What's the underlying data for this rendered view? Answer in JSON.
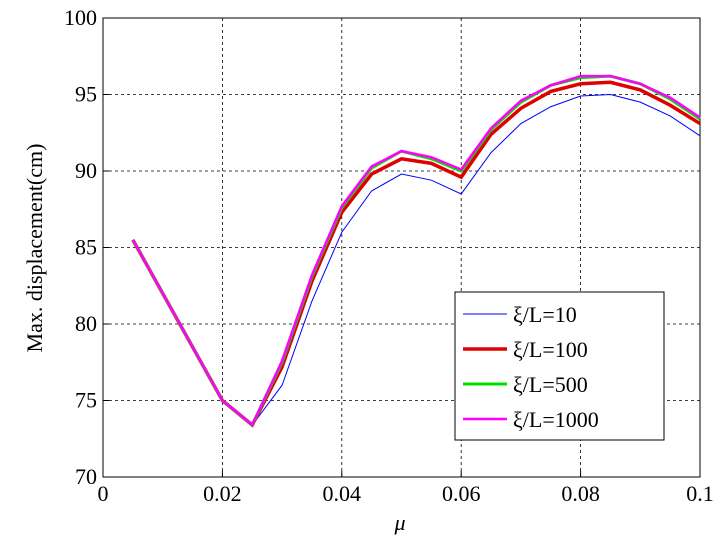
{
  "chart_data": {
    "type": "line",
    "x_label": "μ",
    "y_label": "Max. displacement(cm)",
    "x": [
      0.005,
      0.02,
      0.025,
      0.03,
      0.035,
      0.04,
      0.045,
      0.05,
      0.055,
      0.06,
      0.065,
      0.07,
      0.075,
      0.08,
      0.085,
      0.09,
      0.095,
      0.1
    ],
    "series": [
      {
        "name": "ξ/L=10",
        "color": "#0000ff",
        "values": [
          85.5,
          75,
          73.4,
          76,
          81.5,
          86,
          88.7,
          89.8,
          89.4,
          88.5,
          91.2,
          93.1,
          94.2,
          94.9,
          95,
          94.5,
          93.6,
          92.3
        ]
      },
      {
        "name": "ξ/L=100",
        "color": "#e00000",
        "values": [
          85.5,
          75,
          73.4,
          77.2,
          82.8,
          87.3,
          89.8,
          90.8,
          90.5,
          89.6,
          92.4,
          94.1,
          95.2,
          95.7,
          95.8,
          95.3,
          94.3,
          93.1
        ]
      },
      {
        "name": "ξ/L=500",
        "color": "#00e000",
        "values": [
          85.5,
          75,
          73.4,
          77.5,
          83.1,
          87.6,
          90.2,
          91.3,
          90.8,
          90,
          92.7,
          94.5,
          95.6,
          96.1,
          96.2,
          95.7,
          94.7,
          93.4
        ]
      },
      {
        "name": "ξ/L=1000",
        "color": "#ff00ff",
        "values": [
          85.5,
          75,
          73.4,
          77.6,
          83.2,
          87.7,
          90.3,
          91.3,
          90.9,
          90.1,
          92.8,
          94.6,
          95.6,
          96.2,
          96.2,
          95.7,
          94.8,
          93.5
        ]
      }
    ],
    "xlim": [
      0,
      0.1
    ],
    "xticks": [
      0,
      0.02,
      0.04,
      0.06,
      0.08,
      0.1
    ],
    "ylim": [
      70,
      100
    ],
    "yticks": [
      70,
      75,
      80,
      85,
      90,
      95,
      100
    ],
    "grid": true,
    "legend": "lower right"
  }
}
